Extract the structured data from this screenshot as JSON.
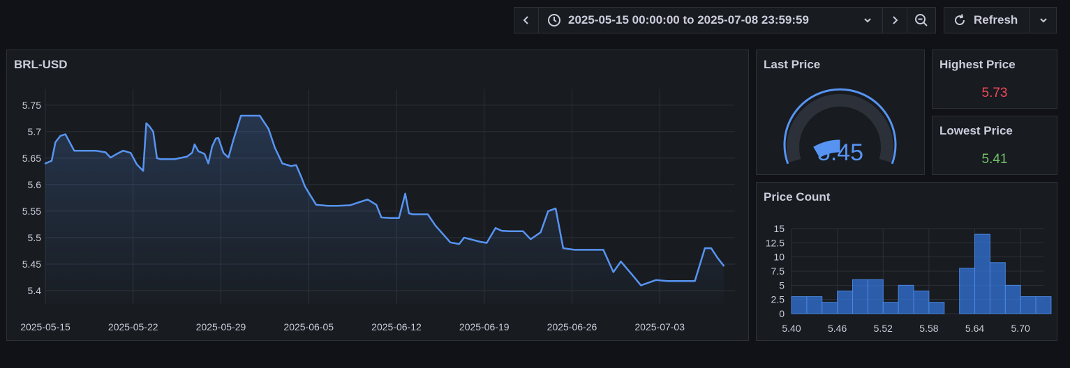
{
  "toolbar": {
    "time_range": "2025-05-15 00:00:00 to 2025-07-08 23:59:59",
    "refresh_label": "Refresh"
  },
  "panels": {
    "main_title": "BRL-USD",
    "last_price": {
      "title": "Last Price",
      "value": "5.45",
      "value_num": 5.45,
      "min": 5.41,
      "max": 5.73
    },
    "highest_price": {
      "title": "Highest Price",
      "value": "5.73"
    },
    "lowest_price": {
      "title": "Lowest Price",
      "value": "5.41"
    },
    "price_count_title": "Price Count"
  },
  "colors": {
    "line": "#5794f2",
    "red": "#f2495c",
    "green": "#73bf69",
    "bar": "#3274d9"
  },
  "chart_data": [
    {
      "type": "line",
      "title": "BRL-USD",
      "ylim": [
        5.375,
        5.78
      ],
      "yticks": [
        5.4,
        5.45,
        5.5,
        5.55,
        5.6,
        5.65,
        5.7,
        5.75
      ],
      "ytick_labels": [
        "5.4",
        "5.45",
        "5.5",
        "5.55",
        "5.6",
        "5.65",
        "5.7",
        "5.75"
      ],
      "xlim": [
        0,
        55
      ],
      "xticks": [
        0,
        7,
        14,
        21,
        28,
        35,
        42,
        49
      ],
      "xtick_labels": [
        "2025-05-15",
        "2025-05-22",
        "2025-05-29",
        "2025-06-05",
        "2025-06-12",
        "2025-06-19",
        "2025-06-26",
        "2025-07-03"
      ],
      "x": [
        0,
        0.5,
        0.8,
        1.2,
        1.6,
        2.3,
        3,
        4,
        4.8,
        5.2,
        5.7,
        6.2,
        6.8,
        7.3,
        7.8,
        8.05,
        8.3,
        8.6,
        8.9,
        9.2,
        10.3,
        11.3,
        11.7,
        11.9,
        12.2,
        12.7,
        13,
        13.3,
        13.6,
        13.8,
        14.2,
        14.6,
        15,
        15.6,
        16.2,
        17.1,
        17.8,
        18.3,
        18.9,
        19.6,
        20,
        20.4,
        20.7,
        21,
        21.6,
        22.5,
        23.3,
        24.3,
        25.7,
        26.4,
        26.8,
        27.5,
        28.2,
        28.7,
        29,
        29.3,
        29.7,
        30.5,
        31.1,
        32.3,
        33,
        33.4,
        34.7,
        35.2,
        35.9,
        36.4,
        37,
        38.1,
        38.7,
        39.5,
        40.1,
        40.7,
        41.3,
        42.2,
        42.7,
        43.1,
        44.5,
        45.3,
        45.9,
        46.8,
        47.5,
        48.7,
        49.6,
        50.6,
        51.8,
        52.6,
        53.1,
        53.6,
        54.1
      ],
      "y": [
        5.64,
        5.645,
        5.68,
        5.692,
        5.695,
        5.664,
        5.664,
        5.664,
        5.661,
        5.651,
        5.658,
        5.664,
        5.66,
        5.638,
        5.626,
        5.716,
        5.71,
        5.7,
        5.65,
        5.648,
        5.648,
        5.653,
        5.66,
        5.676,
        5.663,
        5.658,
        5.64,
        5.672,
        5.687,
        5.688,
        5.66,
        5.651,
        5.685,
        5.73,
        5.73,
        5.73,
        5.705,
        5.67,
        5.64,
        5.635,
        5.637,
        5.615,
        5.597,
        5.585,
        5.562,
        5.56,
        5.56,
        5.561,
        5.572,
        5.562,
        5.538,
        5.537,
        5.537,
        5.583,
        5.546,
        5.544,
        5.544,
        5.544,
        5.523,
        5.491,
        5.488,
        5.5,
        5.492,
        5.49,
        5.518,
        5.513,
        5.512,
        5.512,
        5.497,
        5.51,
        5.55,
        5.555,
        5.48,
        5.477,
        5.477,
        5.477,
        5.477,
        5.435,
        5.455,
        5.43,
        5.41,
        5.42,
        5.418,
        5.418,
        5.418,
        5.48,
        5.48,
        5.462,
        5.447
      ]
    },
    {
      "type": "bar",
      "title": "Price Count",
      "xlim": [
        5.4,
        5.73
      ],
      "ylim": [
        0,
        15
      ],
      "xticks": [
        5.4,
        5.46,
        5.52,
        5.58,
        5.64,
        5.7
      ],
      "xtick_labels": [
        "5.40",
        "5.46",
        "5.52",
        "5.58",
        "5.64",
        "5.70"
      ],
      "yticks": [
        0,
        2.5,
        5,
        7.5,
        10,
        12.5,
        15
      ],
      "ytick_labels": [
        "0",
        "2.5",
        "5",
        "7.5",
        "10",
        "12.5",
        "15"
      ],
      "bin_width": 0.02,
      "bins": [
        5.4,
        5.42,
        5.44,
        5.46,
        5.48,
        5.5,
        5.52,
        5.54,
        5.56,
        5.58,
        5.62,
        5.64,
        5.66,
        5.68,
        5.7,
        5.72
      ],
      "values": [
        3,
        3,
        2,
        4,
        6,
        6,
        2,
        5,
        4,
        2,
        8,
        14,
        9,
        5,
        3,
        3
      ]
    }
  ]
}
